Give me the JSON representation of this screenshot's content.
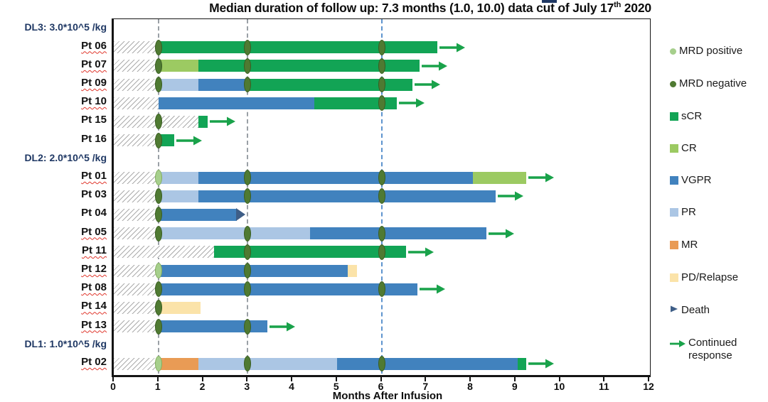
{
  "title": {
    "prefix": "Median duration of follow up: 7.3 months (1.0, 10.0) data cut of July 17",
    "sup": "th",
    "suffix": " 2020"
  },
  "chart_data": {
    "type": "bar",
    "subtype": "swimmer-plot",
    "xlabel": "Months After Infusion",
    "xlim": [
      0,
      12
    ],
    "x_ticks": [
      0,
      1,
      2,
      3,
      4,
      5,
      6,
      7,
      8,
      9,
      10,
      11,
      12
    ],
    "grid": "vertical-reference-lines-only",
    "reference_lines": [
      {
        "x": 1,
        "style": "dashed",
        "color": "#9aa0a6"
      },
      {
        "x": 3,
        "style": "dashed",
        "color": "#9aa0a6"
      },
      {
        "x": 6,
        "style": "dashed",
        "color": "#5E94CE"
      }
    ],
    "colors": {
      "sCR": "#12A455",
      "CR": "#9CCA62",
      "VGPR": "#4182BE",
      "PR": "#ABC6E4",
      "MR": "#E99B55",
      "PD/Relapse": "#FBE3A9",
      "MRD positive": "#A6CF8C",
      "MRD negative": "#4F7A32",
      "Death": "#3E5E87",
      "Continued response": "#19A24A"
    },
    "legend_position": "right",
    "legend": [
      {
        "label": "MRD positive",
        "shape": "circle",
        "color": "#A6CF8C"
      },
      {
        "label": "MRD negative",
        "shape": "circle",
        "color": "#4F7A32"
      },
      {
        "label": "sCR",
        "shape": "square",
        "color": "#12A455"
      },
      {
        "label": "CR",
        "shape": "square",
        "color": "#9CCA62"
      },
      {
        "label": "VGPR",
        "shape": "square",
        "color": "#4182BE"
      },
      {
        "label": "PR",
        "shape": "square",
        "color": "#ABC6E4"
      },
      {
        "label": "MR",
        "shape": "square",
        "color": "#E99B55"
      },
      {
        "label": "PD/Relapse",
        "shape": "square",
        "color": "#FBE3A9"
      },
      {
        "label": "Death",
        "shape": "triangle",
        "color": "#3E5E87"
      },
      {
        "label": "Continued response",
        "shape": "arrow",
        "color": "#19A24A"
      }
    ],
    "groups": [
      {
        "label": "DL3: 3.0*10^5 /kg",
        "patients": [
          {
            "id": "Pt 06",
            "squiggle": true,
            "hatch_end": 1,
            "segments": [
              {
                "response": "sCR",
                "start": 1,
                "end": 7.25
              }
            ],
            "markers": [
              {
                "type": "MRD negative",
                "x": 1
              },
              {
                "type": "MRD negative",
                "x": 3
              },
              {
                "type": "MRD negative",
                "x": 6
              }
            ],
            "end": "arrow"
          },
          {
            "id": "Pt 07",
            "squiggle": true,
            "hatch_end": 1,
            "segments": [
              {
                "response": "CR",
                "start": 1,
                "end": 1.9
              },
              {
                "response": "sCR",
                "start": 1.9,
                "end": 6.85
              }
            ],
            "markers": [
              {
                "type": "MRD negative",
                "x": 1
              },
              {
                "type": "MRD negative",
                "x": 3
              },
              {
                "type": "MRD negative",
                "x": 6
              }
            ],
            "end": "arrow"
          },
          {
            "id": "Pt 09",
            "squiggle": true,
            "hatch_end": 1,
            "segments": [
              {
                "response": "PR",
                "start": 1,
                "end": 1.9
              },
              {
                "response": "VGPR",
                "start": 1.9,
                "end": 3
              },
              {
                "response": "sCR",
                "start": 3,
                "end": 6.7
              }
            ],
            "markers": [
              {
                "type": "MRD negative",
                "x": 1
              },
              {
                "type": "MRD negative",
                "x": 3
              },
              {
                "type": "MRD negative",
                "x": 6
              }
            ],
            "end": "arrow"
          },
          {
            "id": "Pt 10",
            "squiggle": true,
            "hatch_end": 1,
            "segments": [
              {
                "response": "VGPR",
                "start": 1,
                "end": 4.5
              },
              {
                "response": "sCR",
                "start": 4.5,
                "end": 6.35
              }
            ],
            "markers": [
              {
                "type": "MRD negative",
                "x": 6
              }
            ],
            "end": "arrow"
          },
          {
            "id": "Pt 15",
            "squiggle": false,
            "hatch_end": 1.9,
            "segments": [
              {
                "response": "sCR",
                "start": 1.9,
                "end": 2.1
              }
            ],
            "markers": [
              {
                "type": "MRD negative",
                "x": 1
              }
            ],
            "end": "arrow"
          },
          {
            "id": "Pt 16",
            "squiggle": false,
            "hatch_end": 1,
            "segments": [
              {
                "response": "sCR",
                "start": 1,
                "end": 1.35
              }
            ],
            "markers": [
              {
                "type": "MRD negative",
                "x": 1
              }
            ],
            "end": "arrow"
          }
        ]
      },
      {
        "label": "DL2: 2.0*10^5 /kg",
        "patients": [
          {
            "id": "Pt 01",
            "squiggle": true,
            "hatch_end": 1,
            "segments": [
              {
                "response": "PR",
                "start": 1,
                "end": 1.9
              },
              {
                "response": "VGPR",
                "start": 1.9,
                "end": 8.05
              },
              {
                "response": "CR",
                "start": 8.05,
                "end": 9.25
              }
            ],
            "markers": [
              {
                "type": "MRD positive",
                "x": 1
              },
              {
                "type": "MRD negative",
                "x": 3
              },
              {
                "type": "MRD negative",
                "x": 6
              }
            ],
            "end": "arrow"
          },
          {
            "id": "Pt 03",
            "squiggle": false,
            "hatch_end": 1,
            "segments": [
              {
                "response": "PR",
                "start": 1,
                "end": 1.9
              },
              {
                "response": "VGPR",
                "start": 1.9,
                "end": 8.55
              }
            ],
            "markers": [
              {
                "type": "MRD negative",
                "x": 1
              },
              {
                "type": "MRD negative",
                "x": 3
              },
              {
                "type": "MRD negative",
                "x": 6
              }
            ],
            "end": "arrow"
          },
          {
            "id": "Pt 04",
            "squiggle": false,
            "hatch_end": 1,
            "segments": [
              {
                "response": "VGPR",
                "start": 1,
                "end": 2.75
              }
            ],
            "markers": [
              {
                "type": "MRD negative",
                "x": 1
              }
            ],
            "end": "death"
          },
          {
            "id": "Pt 05",
            "squiggle": true,
            "hatch_end": 1,
            "segments": [
              {
                "response": "PR",
                "start": 1,
                "end": 4.4
              },
              {
                "response": "VGPR",
                "start": 4.4,
                "end": 8.35
              }
            ],
            "markers": [
              {
                "type": "MRD negative",
                "x": 1
              },
              {
                "type": "MRD negative",
                "x": 3
              },
              {
                "type": "MRD negative",
                "x": 6
              }
            ],
            "end": "arrow"
          },
          {
            "id": "Pt 11",
            "squiggle": true,
            "hatch_end": 2.25,
            "segments": [
              {
                "response": "sCR",
                "start": 2.25,
                "end": 6.55
              }
            ],
            "markers": [
              {
                "type": "MRD negative",
                "x": 3
              },
              {
                "type": "MRD negative",
                "x": 6
              }
            ],
            "end": "arrow"
          },
          {
            "id": "Pt 12",
            "squiggle": true,
            "hatch_end": 1,
            "segments": [
              {
                "response": "VGPR",
                "start": 1,
                "end": 5.25
              },
              {
                "response": "PD/Relapse",
                "start": 5.25,
                "end": 5.45
              }
            ],
            "markers": [
              {
                "type": "MRD positive",
                "x": 1
              },
              {
                "type": "MRD negative",
                "x": 3
              }
            ],
            "end": null
          },
          {
            "id": "Pt 08",
            "squiggle": true,
            "hatch_end": 1,
            "segments": [
              {
                "response": "VGPR",
                "start": 1,
                "end": 6.8
              }
            ],
            "markers": [
              {
                "type": "MRD negative",
                "x": 1
              },
              {
                "type": "MRD negative",
                "x": 3
              },
              {
                "type": "MRD negative",
                "x": 6
              }
            ],
            "end": "arrow"
          },
          {
            "id": "Pt 14",
            "squiggle": true,
            "hatch_end": 1,
            "segments": [
              {
                "response": "PD/Relapse",
                "start": 1,
                "end": 1.95
              }
            ],
            "markers": [
              {
                "type": "MRD negative",
                "x": 1
              }
            ],
            "end": null
          },
          {
            "id": "Pt 13",
            "squiggle": true,
            "hatch_end": 1,
            "segments": [
              {
                "response": "VGPR",
                "start": 1,
                "end": 3.45
              }
            ],
            "markers": [
              {
                "type": "MRD negative",
                "x": 1
              },
              {
                "type": "MRD negative",
                "x": 3
              }
            ],
            "end": "arrow"
          }
        ]
      },
      {
        "label": "DL1: 1.0*10^5 /kg",
        "patients": [
          {
            "id": "Pt 02",
            "squiggle": true,
            "hatch_end": 1,
            "segments": [
              {
                "response": "MR",
                "start": 1,
                "end": 1.9
              },
              {
                "response": "PR",
                "start": 1.9,
                "end": 5
              },
              {
                "response": "VGPR",
                "start": 5,
                "end": 9.05
              },
              {
                "response": "sCR",
                "start": 9.05,
                "end": 9.25
              }
            ],
            "markers": [
              {
                "type": "MRD positive",
                "x": 1
              },
              {
                "type": "MRD negative",
                "x": 3
              },
              {
                "type": "MRD negative",
                "x": 6
              }
            ],
            "end": "arrow"
          }
        ]
      }
    ]
  }
}
